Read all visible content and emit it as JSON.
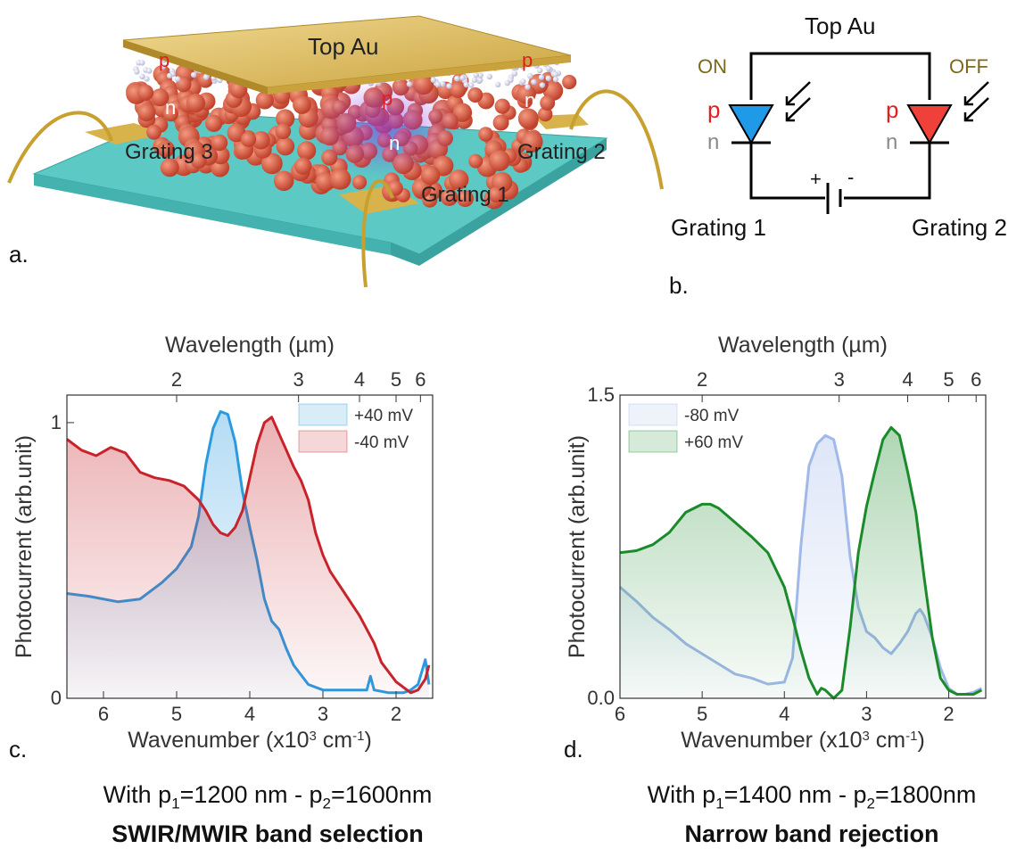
{
  "panel_a": {
    "letter": "a.",
    "top_label": "Top Au",
    "p_label": "p",
    "n_label": "n",
    "grating1": "Grating 1",
    "grating2": "Grating 2",
    "grating3": "Grating 3",
    "colors": {
      "gold": "#d8b24a",
      "substrate": "#4fc6c2",
      "particles": "#d8553a",
      "p_text": "#e02020"
    }
  },
  "panel_b": {
    "letter": "b.",
    "top_label": "Top Au",
    "on_label": "ON",
    "off_label": "OFF",
    "p_label": "p",
    "n_label": "n",
    "plus": "+",
    "minus": "-",
    "grating1": "Grating 1",
    "grating2": "Grating 2",
    "colors": {
      "on_diode": "#1f9ae8",
      "off_diode": "#f0403a",
      "status_text": "#7a6a1a",
      "p_text": "#e02020",
      "n_text": "#8a8a8a"
    }
  },
  "panel_c": {
    "letter": "c.",
    "caption_line1_prefix": "With p",
    "caption_sub1": "1",
    "caption_mid": "=1200 nm - p",
    "caption_sub2": "2",
    "caption_suffix": "=1600nm",
    "caption_line2": "SWIR/MWIR band selection"
  },
  "panel_d": {
    "letter": "d.",
    "caption_line1_prefix": "With p",
    "caption_sub1": "1",
    "caption_mid": "=1400 nm - p",
    "caption_sub2": "2",
    "caption_suffix": "=1800nm",
    "caption_line2": "Narrow band rejection"
  },
  "chart_data": [
    {
      "type": "area",
      "top_axis_label": "Wavelength (µm)",
      "top_ticks": [
        "2",
        "3",
        "4",
        "5",
        "6"
      ],
      "xlabel_prefix": "Wavenumber (x10",
      "xlabel_sup1": "3",
      "xlabel_mid": " cm",
      "xlabel_sup2": "-1",
      "xlabel_suffix": ")",
      "ylabel": "Photocurrent (arb.unit)",
      "x_ticks": [
        "6",
        "5",
        "4",
        "3",
        "2"
      ],
      "y_ticks": [
        "0",
        "1"
      ],
      "xlim": [
        6.5,
        1.5
      ],
      "ylim": [
        0,
        1.1
      ],
      "legend": "top-right",
      "series": [
        {
          "name": "+40 mV",
          "color": "#2b9be0",
          "x": [
            6.5,
            6.2,
            5.8,
            5.5,
            5.2,
            5.0,
            4.8,
            4.7,
            4.6,
            4.5,
            4.4,
            4.3,
            4.2,
            4.1,
            4.0,
            3.9,
            3.8,
            3.7,
            3.6,
            3.5,
            3.4,
            3.2,
            3.0,
            2.8,
            2.6,
            2.4,
            2.35,
            2.3,
            2.1,
            1.9,
            1.8,
            1.7,
            1.6,
            1.55
          ],
          "y": [
            0.38,
            0.37,
            0.35,
            0.36,
            0.42,
            0.47,
            0.55,
            0.66,
            0.85,
            0.98,
            1.04,
            1.03,
            0.93,
            0.75,
            0.62,
            0.5,
            0.36,
            0.28,
            0.25,
            0.18,
            0.12,
            0.05,
            0.03,
            0.03,
            0.03,
            0.03,
            0.08,
            0.03,
            0.02,
            0.02,
            0.03,
            0.05,
            0.14,
            0.05
          ]
        },
        {
          "name": "-40 mV",
          "color": "#c8232a",
          "x": [
            6.5,
            6.3,
            6.1,
            5.9,
            5.7,
            5.5,
            5.3,
            5.1,
            4.9,
            4.7,
            4.6,
            4.5,
            4.4,
            4.3,
            4.2,
            4.1,
            4.0,
            3.9,
            3.8,
            3.7,
            3.6,
            3.5,
            3.4,
            3.3,
            3.2,
            3.1,
            3.0,
            2.9,
            2.8,
            2.7,
            2.6,
            2.5,
            2.4,
            2.3,
            2.2,
            2.0,
            1.8,
            1.7,
            1.6,
            1.55
          ],
          "y": [
            0.94,
            0.9,
            0.88,
            0.91,
            0.89,
            0.82,
            0.8,
            0.79,
            0.77,
            0.72,
            0.68,
            0.63,
            0.6,
            0.59,
            0.62,
            0.68,
            0.8,
            0.92,
            1.0,
            1.02,
            0.96,
            0.9,
            0.84,
            0.79,
            0.72,
            0.6,
            0.52,
            0.46,
            0.42,
            0.38,
            0.34,
            0.3,
            0.25,
            0.2,
            0.13,
            0.06,
            0.02,
            0.03,
            0.07,
            0.12
          ]
        }
      ]
    },
    {
      "type": "area",
      "top_axis_label": "Wavelength (µm)",
      "top_ticks": [
        "2",
        "3",
        "4",
        "5",
        "6"
      ],
      "xlabel_prefix": "Wavenumber (x10",
      "xlabel_sup1": "3",
      "xlabel_mid": " cm",
      "xlabel_sup2": "-1",
      "xlabel_suffix": ")",
      "ylabel": "Photocurrent (arb.unit)",
      "x_ticks": [
        "6",
        "5",
        "4",
        "3",
        "2"
      ],
      "y_ticks": [
        "0.0",
        "1.5"
      ],
      "xlim": [
        6.0,
        1.55
      ],
      "ylim": [
        0,
        1.5
      ],
      "legend": "top-left",
      "series": [
        {
          "name": "-80 mV",
          "color": "#a0b8ea",
          "x": [
            6.0,
            5.8,
            5.6,
            5.4,
            5.2,
            5.0,
            4.8,
            4.6,
            4.4,
            4.2,
            4.0,
            3.9,
            3.8,
            3.7,
            3.6,
            3.5,
            3.4,
            3.3,
            3.2,
            3.1,
            3.0,
            2.9,
            2.8,
            2.7,
            2.6,
            2.5,
            2.4,
            2.35,
            2.3,
            2.2,
            2.1,
            2.0,
            1.9,
            1.8,
            1.7,
            1.6
          ],
          "y": [
            0.55,
            0.48,
            0.4,
            0.34,
            0.27,
            0.22,
            0.17,
            0.12,
            0.1,
            0.07,
            0.08,
            0.2,
            0.75,
            1.15,
            1.26,
            1.3,
            1.28,
            1.1,
            0.7,
            0.45,
            0.33,
            0.3,
            0.25,
            0.22,
            0.27,
            0.33,
            0.42,
            0.44,
            0.41,
            0.3,
            0.15,
            0.05,
            0.02,
            0.02,
            0.03,
            0.05
          ]
        },
        {
          "name": "+60 mV",
          "color": "#1a8a2a",
          "x": [
            6.0,
            5.8,
            5.6,
            5.4,
            5.2,
            5.0,
            4.9,
            4.8,
            4.6,
            4.4,
            4.2,
            4.0,
            3.9,
            3.8,
            3.7,
            3.6,
            3.55,
            3.5,
            3.4,
            3.3,
            3.2,
            3.1,
            3.0,
            2.9,
            2.8,
            2.7,
            2.6,
            2.5,
            2.4,
            2.3,
            2.2,
            2.1,
            2.0,
            1.9,
            1.8,
            1.7,
            1.6
          ],
          "y": [
            0.72,
            0.73,
            0.76,
            0.82,
            0.92,
            0.96,
            0.96,
            0.94,
            0.87,
            0.8,
            0.72,
            0.55,
            0.4,
            0.24,
            0.1,
            0.02,
            0.05,
            0.04,
            0.0,
            0.04,
            0.35,
            0.72,
            0.95,
            1.12,
            1.28,
            1.34,
            1.3,
            1.12,
            0.92,
            0.6,
            0.3,
            0.1,
            0.04,
            0.02,
            0.02,
            0.02,
            0.04
          ]
        }
      ]
    }
  ]
}
